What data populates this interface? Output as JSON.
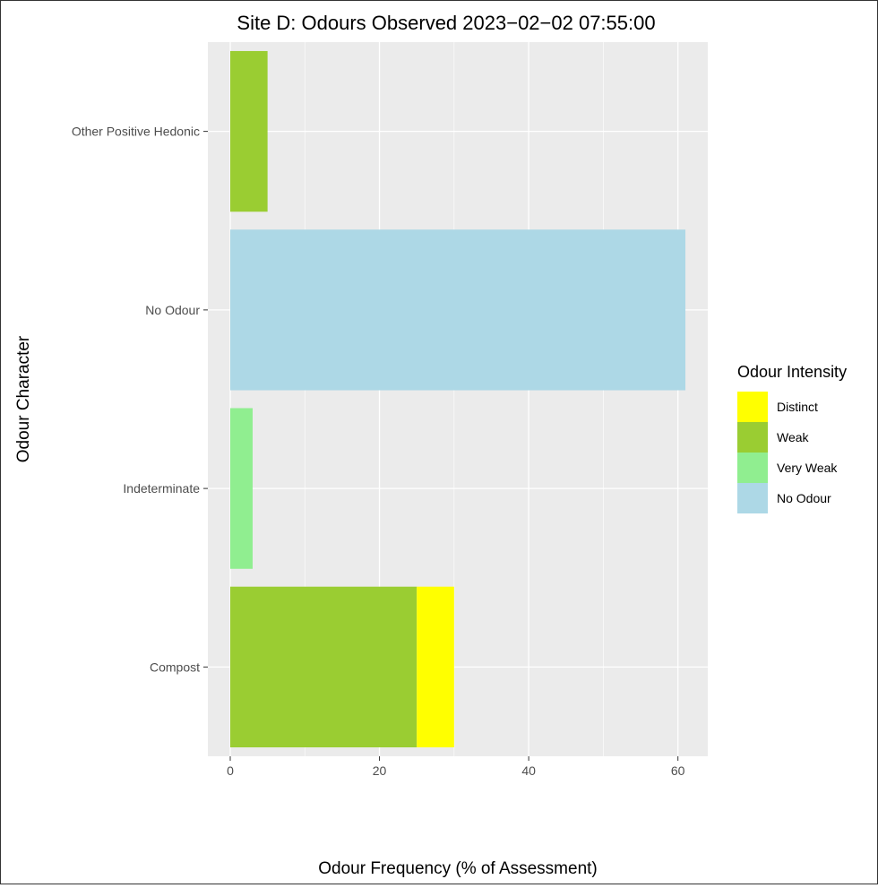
{
  "chart_data": {
    "type": "bar",
    "orientation": "horizontal",
    "stacked": true,
    "title": "Site D: Odours Observed 2023−02−02 07:55:00",
    "xlabel": "Odour Frequency (% of Assessment)",
    "ylabel": "Odour Character",
    "xlim": [
      -3,
      64
    ],
    "xticks": [
      0,
      20,
      40,
      60
    ],
    "grid": true,
    "legend_position": "right",
    "legend_title": "Odour Intensity",
    "categories": [
      "Compost",
      "Indeterminate",
      "No Odour",
      "Other Positive Hedonic"
    ],
    "series": [
      {
        "name": "No Odour",
        "color": "#add8e6",
        "values": [
          0,
          0,
          61,
          0
        ]
      },
      {
        "name": "Very Weak",
        "color": "#90ee90",
        "values": [
          0,
          3,
          0,
          0
        ]
      },
      {
        "name": "Weak",
        "color": "#9acd32",
        "values": [
          25,
          0,
          0,
          5
        ]
      },
      {
        "name": "Distinct",
        "color": "#ffff00",
        "values": [
          5,
          0,
          0,
          0
        ]
      }
    ],
    "legend_order": [
      "Distinct",
      "Weak",
      "Very Weak",
      "No Odour"
    ]
  },
  "colors": {
    "panel_background": "#ebebeb",
    "gridline": "#ffffff"
  }
}
